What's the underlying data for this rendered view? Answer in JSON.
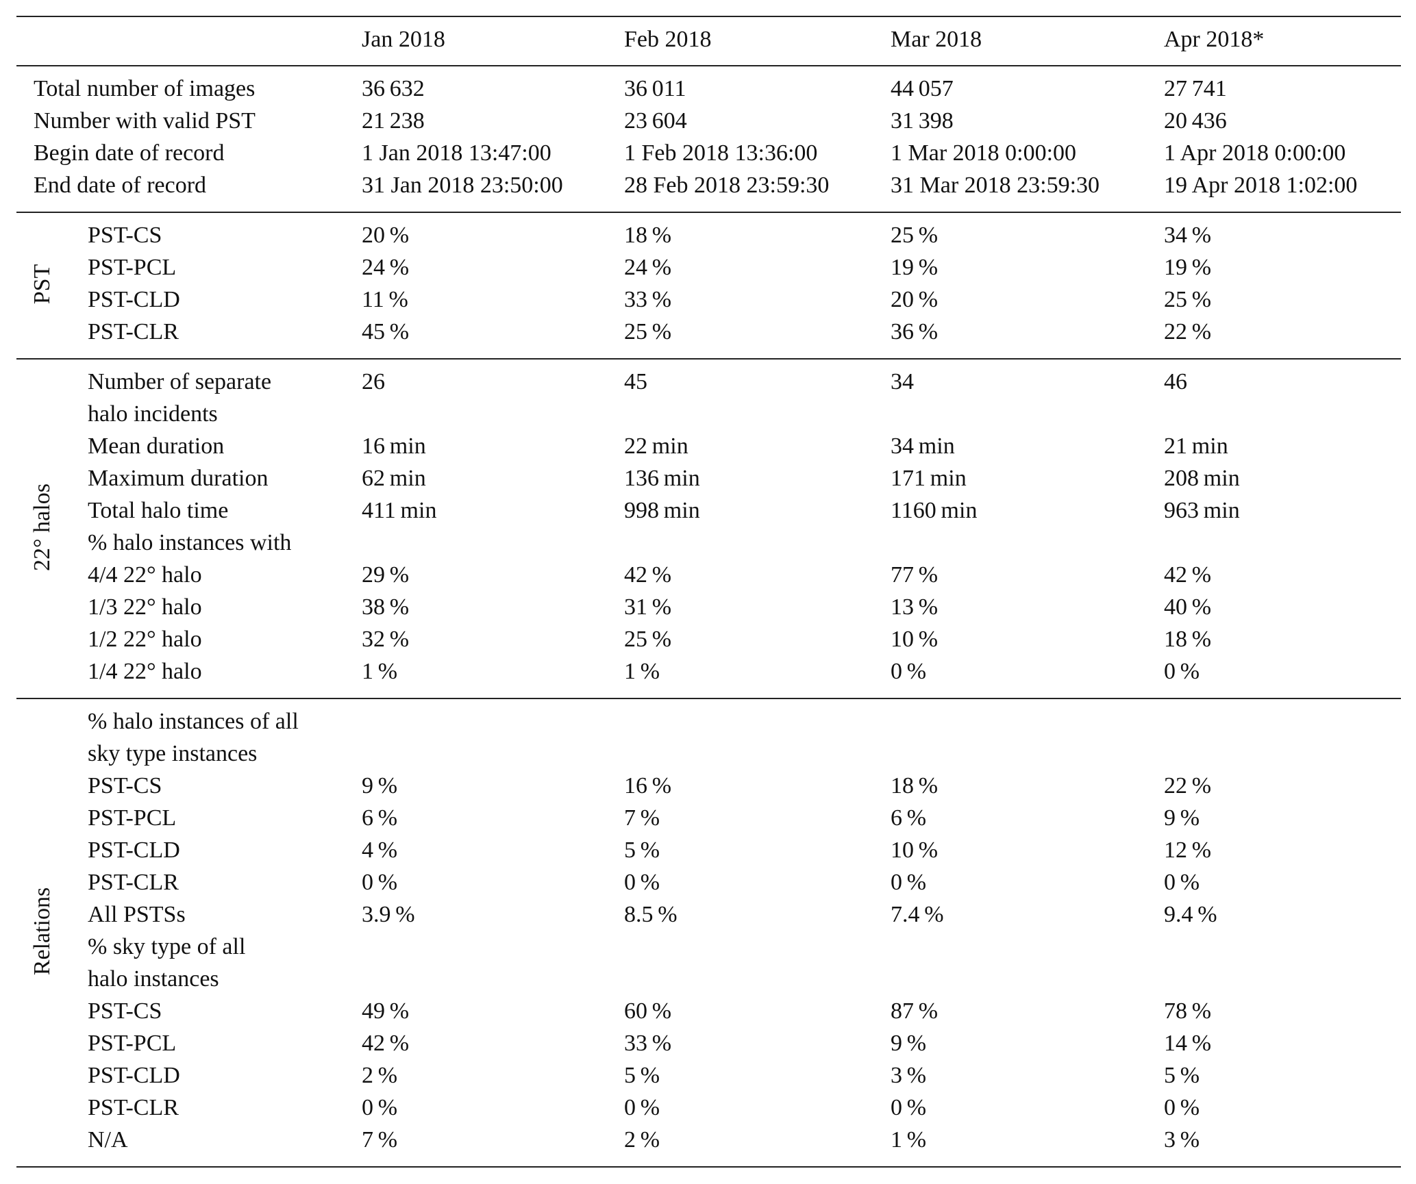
{
  "table": {
    "columns": [
      "Jan 2018",
      "Feb 2018",
      "Mar 2018",
      "Apr 2018*"
    ],
    "sections": [
      {
        "rows": [
          {
            "label": [
              "Total number of images"
            ],
            "cells": [
              "36 632",
              "36 011",
              "44 057",
              "27 741"
            ]
          },
          {
            "label": [
              "Number with valid PST"
            ],
            "cells": [
              "21 238",
              "23 604",
              "31 398",
              "20 436"
            ]
          },
          {
            "label": [
              "Begin date of record"
            ],
            "cells": [
              "1 Jan 2018 13:47:00",
              "1 Feb 2018 13:36:00",
              "1 Mar 2018 0:00:00",
              "1 Apr 2018 0:00:00"
            ]
          },
          {
            "label": [
              "End date of record"
            ],
            "cells": [
              "31 Jan 2018 23:50:00",
              "28 Feb 2018 23:59:30",
              "31 Mar 2018 23:59:30",
              "19 Apr 2018 1:02:00"
            ]
          }
        ]
      },
      {
        "name": "PST",
        "rows": [
          {
            "label": [
              "PST-CS"
            ],
            "cells": [
              "20 %",
              "18 %",
              "25 %",
              "34 %"
            ]
          },
          {
            "label": [
              "PST-PCL"
            ],
            "cells": [
              "24 %",
              "24 %",
              "19 %",
              "19 %"
            ]
          },
          {
            "label": [
              "PST-CLD"
            ],
            "cells": [
              "11 %",
              "33 %",
              "20 %",
              "25 %"
            ]
          },
          {
            "label": [
              "PST-CLR"
            ],
            "cells": [
              "45 %",
              "25 %",
              "36 %",
              "22 %"
            ]
          }
        ]
      },
      {
        "name": "22° halos",
        "rows": [
          {
            "label": [
              "Number of separate",
              "halo incidents"
            ],
            "cells": [
              "26",
              "45",
              "34",
              "46"
            ]
          },
          {
            "label": [
              "Mean duration"
            ],
            "cells": [
              "16 min",
              "22 min",
              "34 min",
              "21 min"
            ]
          },
          {
            "label": [
              "Maximum duration"
            ],
            "cells": [
              "62 min",
              "136 min",
              "171 min",
              "208 min"
            ]
          },
          {
            "label": [
              "Total halo time"
            ],
            "cells": [
              "411 min",
              "998 min",
              "1160 min",
              "963 min"
            ]
          },
          {
            "label": [
              "% halo instances with"
            ]
          },
          {
            "label": [
              "4/4 22° halo"
            ],
            "cells": [
              "29 %",
              "42 %",
              "77 %",
              "42 %"
            ]
          },
          {
            "label": [
              "1/3 22° halo"
            ],
            "cells": [
              "38 %",
              "31 %",
              "13 %",
              "40 %"
            ]
          },
          {
            "label": [
              "1/2 22° halo"
            ],
            "cells": [
              "32 %",
              "25 %",
              "10 %",
              "18 %"
            ]
          },
          {
            "label": [
              "1/4 22° halo"
            ],
            "cells": [
              "1 %",
              "1 %",
              "0 %",
              "0 %"
            ]
          }
        ]
      },
      {
        "name": "Relations",
        "rows": [
          {
            "label": [
              "% halo instances of all",
              "sky type instances"
            ]
          },
          {
            "label": [
              "PST-CS"
            ],
            "cells": [
              "9 %",
              "16 %",
              "18 %",
              "22 %"
            ]
          },
          {
            "label": [
              "PST-PCL"
            ],
            "cells": [
              "6 %",
              "7 %",
              "6 %",
              "9 %"
            ]
          },
          {
            "label": [
              "PST-CLD"
            ],
            "cells": [
              "4 %",
              "5 %",
              "10 %",
              "12 %"
            ]
          },
          {
            "label": [
              "PST-CLR"
            ],
            "cells": [
              "0 %",
              "0 %",
              "0 %",
              "0 %"
            ]
          },
          {
            "label": [
              "All PSTSs"
            ],
            "cells": [
              "3.9 %",
              "8.5 %",
              "7.4 %",
              "9.4 %"
            ]
          },
          {
            "label": [
              "% sky type of all",
              "halo instances"
            ]
          },
          {
            "label": [
              "PST-CS"
            ],
            "cells": [
              "49 %",
              "60 %",
              "87 %",
              "78 %"
            ]
          },
          {
            "label": [
              "PST-PCL"
            ],
            "cells": [
              "42 %",
              "33 %",
              "9 %",
              "14 %"
            ]
          },
          {
            "label": [
              "PST-CLD"
            ],
            "cells": [
              "2 %",
              "5 %",
              "3 %",
              "5 %"
            ]
          },
          {
            "label": [
              "PST-CLR"
            ],
            "cells": [
              "0 %",
              "0 %",
              "0 %",
              "0 %"
            ]
          },
          {
            "label": [
              "N/A"
            ],
            "cells": [
              "7 %",
              "2 %",
              "1 %",
              "3 %"
            ]
          }
        ]
      }
    ]
  }
}
